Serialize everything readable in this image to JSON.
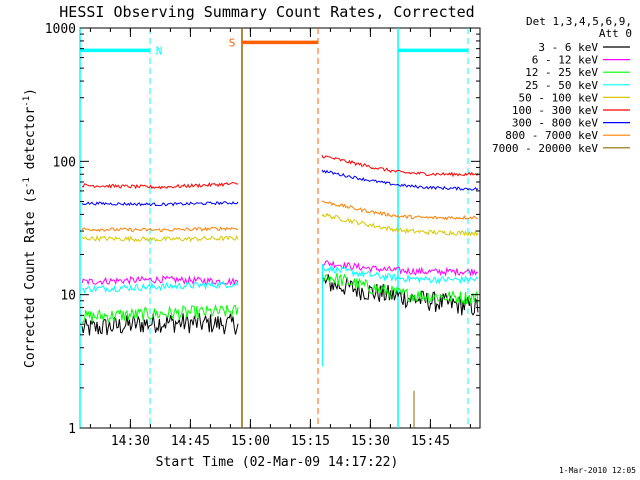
{
  "chart_data": {
    "type": "line",
    "title": "HESSI Observing Summary Count Rates, Corrected",
    "xlabel": "Start Time (02-Mar-09 14:17:22)",
    "ylabel_main": "Corrected Count Rate (s",
    "ylabel_sup1": "-1",
    "ylabel_mid": " detector",
    "ylabel_sup2": "-1",
    "ylabel_end": ")",
    "yscale": "log",
    "ylim": [
      1,
      1000
    ],
    "xlim_minutes": [
      0,
      100
    ],
    "xticks": [
      {
        "label": "14:30",
        "m": 12.6
      },
      {
        "label": "14:45",
        "m": 27.6
      },
      {
        "label": "15:00",
        "m": 42.6
      },
      {
        "label": "15:15",
        "m": 57.6
      },
      {
        "label": "15:30",
        "m": 72.6
      },
      {
        "label": "15:45",
        "m": 87.6
      }
    ],
    "yticks": [
      {
        "label": "1",
        "v": 1
      },
      {
        "label": "10",
        "v": 10
      },
      {
        "label": "100",
        "v": 100
      },
      {
        "label": "1000",
        "v": 1000
      }
    ],
    "legend_header": [
      "Det 1,3,4,5,6,9,",
      "Att 0"
    ],
    "series": [
      {
        "name": "3 - 6 keV",
        "color": "#000000",
        "pre": [
          5.5,
          6.2,
          6.0
        ],
        "post": [
          12.5,
          10.5,
          8.0
        ],
        "noise": 0.18
      },
      {
        "name": "6 - 12 keV",
        "color": "#ff00ff",
        "pre": [
          12.5,
          13.0,
          12.5
        ],
        "post": [
          17.5,
          16.5,
          15.0
        ],
        "noise": 0.06
      },
      {
        "name": "12 - 25 keV",
        "color": "#00ff00",
        "pre": [
          6.8,
          7.2,
          7.5
        ],
        "post": [
          14.0,
          11.0,
          9.5
        ],
        "noise": 0.12
      },
      {
        "name": "25 - 50 keV",
        "color": "#00ffff",
        "pre": [
          11.0,
          11.5,
          12.0
        ],
        "post": [
          16.0,
          14.5,
          13.0
        ],
        "noise": 0.06
      },
      {
        "name": "50 - 100 keV",
        "color": "#d8c800",
        "pre": [
          26.5,
          26.0,
          26.5
        ],
        "post": [
          40.0,
          33.0,
          29.0
        ],
        "noise": 0.04
      },
      {
        "name": "100 - 300 keV",
        "color": "#ff0000",
        "pre": [
          66.0,
          64.0,
          68.0
        ],
        "post": [
          110.0,
          90.0,
          80.0
        ],
        "noise": 0.03
      },
      {
        "name": "300 - 800 keV",
        "color": "#0000ff",
        "pre": [
          48.5,
          47.5,
          49.0
        ],
        "post": [
          85.0,
          72.0,
          62.0
        ],
        "noise": 0.025
      },
      {
        "name": "800 - 7000 keV",
        "color": "#ff8000",
        "pre": [
          31.0,
          30.5,
          31.5
        ],
        "post": [
          50.0,
          42.0,
          38.0
        ],
        "noise": 0.03
      },
      {
        "name": "7000 - 20000 keV",
        "color": "#8a6d00",
        "pre": [],
        "post": [],
        "noise": 0
      }
    ],
    "gap_minutes": [
      39.5,
      60.0
    ],
    "state_bars": [
      {
        "label": "N",
        "color": "#00ffff",
        "segments": [
          [
            0,
            17.5
          ],
          [
            79.5,
            97
          ]
        ],
        "level": 680
      },
      {
        "label": "S",
        "color": "#ff6000",
        "segments": [
          [
            40.5,
            59.5
          ]
        ],
        "level": 780
      }
    ],
    "night_lines_m": [
      0,
      17.5,
      79.5,
      97
    ],
    "saa_lines_m": [
      40.5,
      59.5
    ]
  },
  "footer": {
    "timestamp": "1-Mar-2010 12:05"
  }
}
